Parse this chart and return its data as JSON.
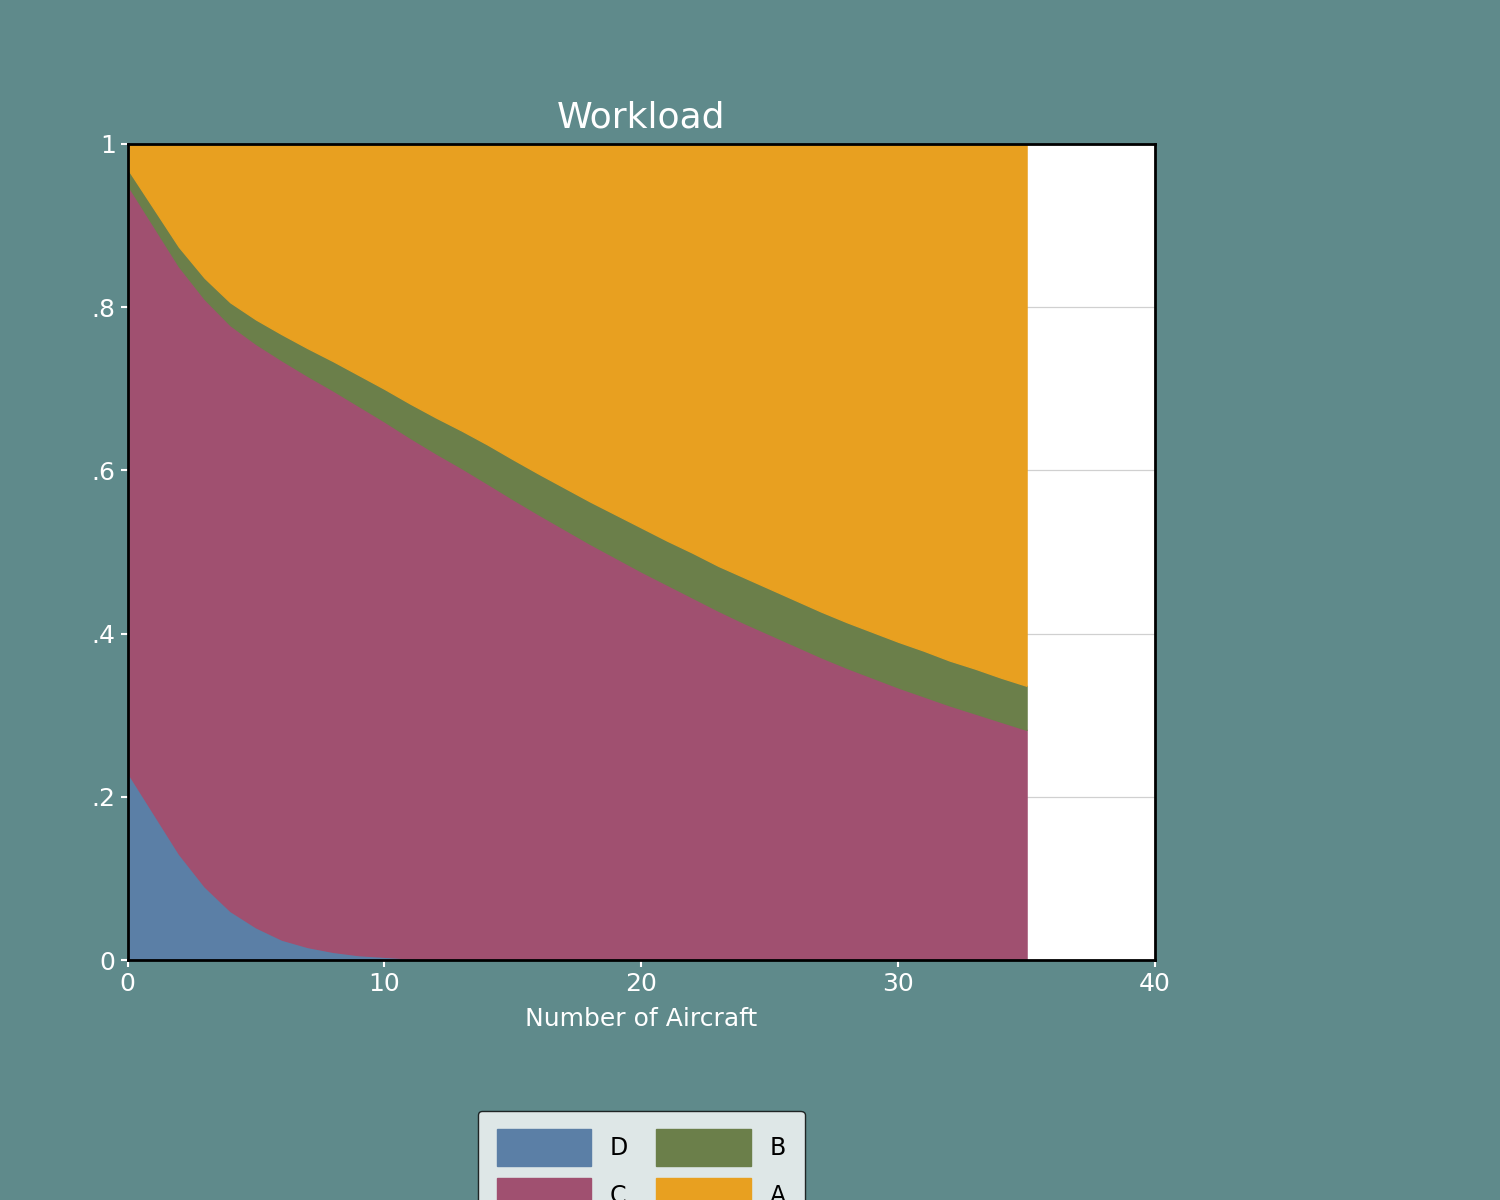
{
  "title": "Workload",
  "xlabel": "Number of Aircraft",
  "background_color": "#5f8a8b",
  "plot_bg_color": "#ffffff",
  "x_min": 0,
  "x_max": 35,
  "x_tick_max": 40,
  "y_min": 0,
  "y_max": 1,
  "yticks": [
    0,
    0.2,
    0.4,
    0.6,
    0.8,
    1.0
  ],
  "ytick_labels": [
    "0",
    ".2",
    ".4",
    ".6",
    ".8",
    "1"
  ],
  "xticks": [
    0,
    10,
    20,
    30,
    40
  ],
  "x_data": [
    0,
    1,
    2,
    3,
    4,
    5,
    6,
    7,
    8,
    9,
    10,
    11,
    12,
    13,
    14,
    15,
    16,
    17,
    18,
    19,
    20,
    21,
    22,
    23,
    24,
    25,
    26,
    27,
    28,
    29,
    30,
    31,
    32,
    33,
    34,
    35
  ],
  "D_raw": [
    0.23,
    0.18,
    0.13,
    0.09,
    0.06,
    0.04,
    0.025,
    0.016,
    0.01,
    0.006,
    0.004,
    0.002,
    0.001,
    0.001,
    0.001,
    0.0005,
    0.0003,
    0.0002,
    0.0001,
    0.0001,
    0.0001,
    0.0001,
    0.0001,
    0.0001,
    0.0001,
    0.0001,
    0.0001,
    0.0001,
    0.0001,
    0.0001,
    0.0001,
    0.0001,
    0.0001,
    0.0001,
    0.0001,
    0.0001
  ],
  "C_raw": [
    0.72,
    0.72,
    0.72,
    0.72,
    0.718,
    0.715,
    0.71,
    0.7,
    0.688,
    0.673,
    0.656,
    0.638,
    0.62,
    0.602,
    0.583,
    0.564,
    0.546,
    0.528,
    0.51,
    0.493,
    0.476,
    0.46,
    0.444,
    0.428,
    0.413,
    0.399,
    0.385,
    0.371,
    0.358,
    0.346,
    0.334,
    0.323,
    0.312,
    0.302,
    0.292,
    0.282
  ],
  "B_raw": [
    0.02,
    0.022,
    0.024,
    0.026,
    0.028,
    0.03,
    0.032,
    0.034,
    0.036,
    0.038,
    0.04,
    0.042,
    0.044,
    0.046,
    0.048,
    0.049,
    0.05,
    0.051,
    0.052,
    0.053,
    0.054,
    0.054,
    0.055,
    0.055,
    0.056,
    0.056,
    0.056,
    0.056,
    0.056,
    0.056,
    0.056,
    0.056,
    0.055,
    0.055,
    0.054,
    0.054
  ],
  "A_raw": [
    0.03,
    0.078,
    0.126,
    0.164,
    0.194,
    0.215,
    0.233,
    0.25,
    0.266,
    0.283,
    0.3,
    0.318,
    0.335,
    0.351,
    0.368,
    0.386,
    0.404,
    0.421,
    0.438,
    0.454,
    0.47,
    0.486,
    0.501,
    0.517,
    0.531,
    0.545,
    0.559,
    0.573,
    0.586,
    0.598,
    0.61,
    0.621,
    0.633,
    0.643,
    0.654,
    0.664
  ],
  "color_D": "#5b7fa6",
  "color_C": "#a05070",
  "color_B": "#6b7f4a",
  "color_A": "#e8a020",
  "title_color": "#ffffff",
  "tick_color": "#ffffff",
  "label_color": "#ffffff",
  "grid_color": "#d0d0d0",
  "title_fontsize": 26,
  "label_fontsize": 18,
  "tick_fontsize": 18,
  "legend_fontsize": 17
}
